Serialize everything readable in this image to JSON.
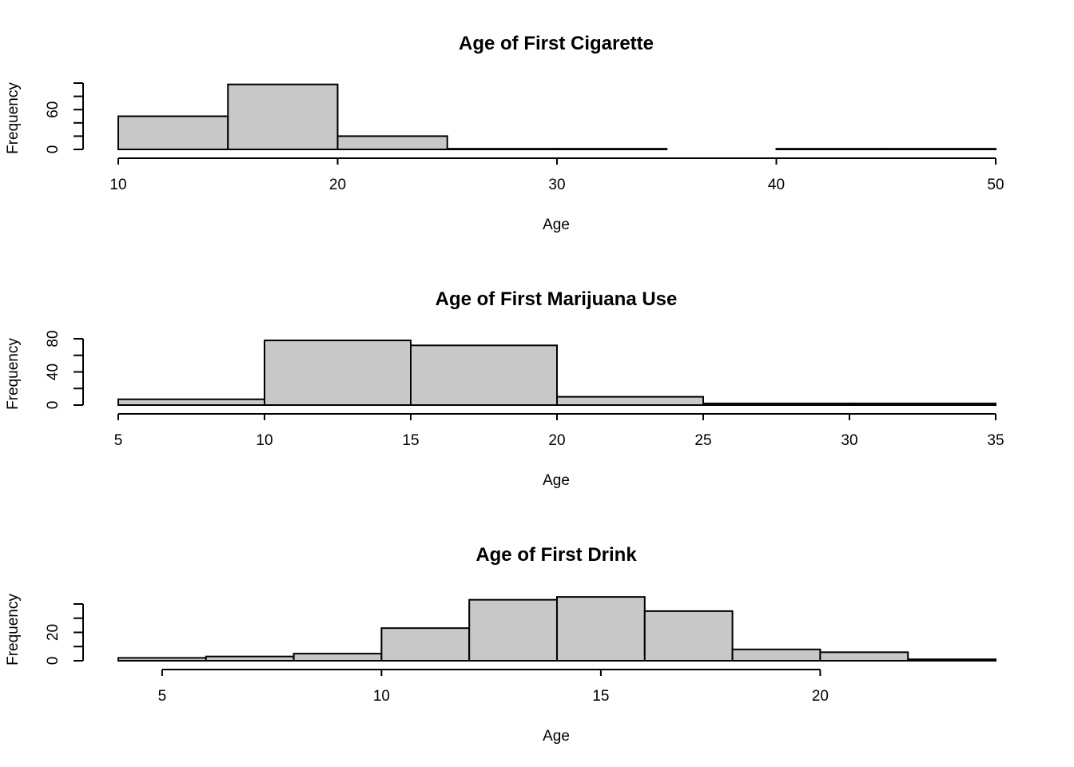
{
  "chart_data": [
    {
      "type": "bar",
      "title": "Age of First Cigarette",
      "xlabel": "Age",
      "ylabel": "Frequency",
      "bin_edges": [
        10,
        15,
        20,
        25,
        30,
        35,
        40,
        45,
        50
      ],
      "values": [
        50,
        98,
        20,
        1,
        1,
        0,
        1,
        1
      ],
      "xlim": [
        10,
        50
      ],
      "ylim": [
        0,
        100
      ],
      "x_ticks": [
        10,
        20,
        30,
        40,
        50
      ],
      "y_ticks": [
        0,
        20,
        40,
        60,
        80,
        100
      ],
      "y_tick_labels": [
        "0",
        "",
        "",
        "60",
        "",
        ""
      ]
    },
    {
      "type": "bar",
      "title": "Age of First Marijuana Use",
      "xlabel": "Age",
      "ylabel": "Frequency",
      "bin_edges": [
        5,
        10,
        15,
        20,
        25,
        30,
        35
      ],
      "values": [
        7,
        78,
        72,
        10,
        2,
        2
      ],
      "xlim": [
        5,
        35
      ],
      "ylim": [
        0,
        80
      ],
      "x_ticks": [
        5,
        10,
        15,
        20,
        25,
        30,
        35
      ],
      "y_ticks": [
        0,
        20,
        40,
        60,
        80
      ],
      "y_tick_labels": [
        "0",
        "",
        "40",
        "",
        "80"
      ]
    },
    {
      "type": "bar",
      "title": "Age of First Drink",
      "xlabel": "Age",
      "ylabel": "Frequency",
      "bin_edges": [
        4,
        6,
        8,
        10,
        12,
        14,
        16,
        18,
        20,
        22,
        24
      ],
      "values": [
        2,
        3,
        5,
        23,
        43,
        45,
        35,
        8,
        6,
        1
      ],
      "xlim": [
        4,
        24
      ],
      "ylim": [
        0,
        40
      ],
      "x_ticks": [
        5,
        10,
        15,
        20
      ],
      "y_ticks": [
        0,
        10,
        20,
        30,
        40
      ],
      "y_tick_labels": [
        "0",
        "",
        "20",
        "",
        ""
      ]
    }
  ]
}
